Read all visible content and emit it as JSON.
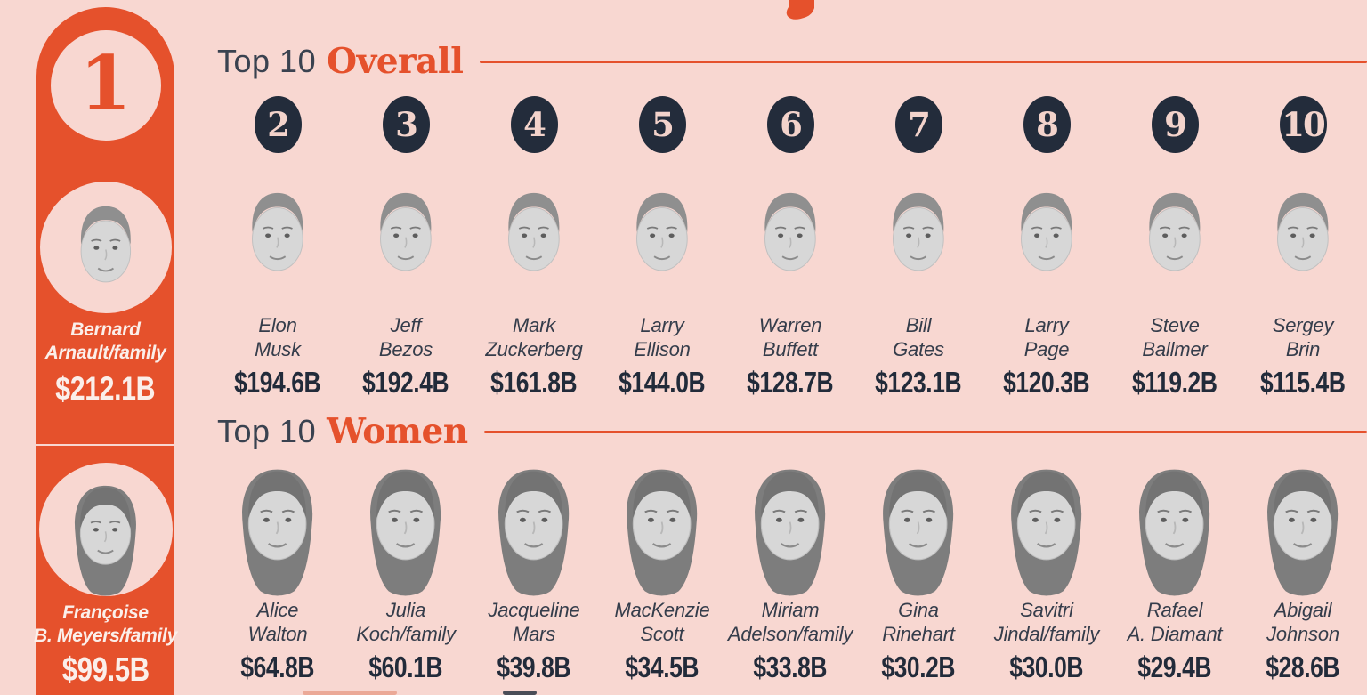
{
  "page": {
    "background_color": "#F8D7D1",
    "accent_orange": "#E5512C",
    "navy": "#232C3B",
    "badge_number_color": "#F3D3CB",
    "sidebar_text_color": "#FBEFEA",
    "value_unit": "USD billions"
  },
  "sidebar": {
    "rank": "1",
    "entries": [
      {
        "name": "Bernard Arnault/family",
        "line1": "Bernard",
        "line2": "Arnault/family",
        "value": "$212.1B",
        "photo": "male"
      },
      {
        "name": "Françoise B. Meyers/family",
        "line1": "Françoise",
        "line2": "B. Meyers/family",
        "value": "$99.5B",
        "photo": "female"
      }
    ]
  },
  "sections": [
    {
      "heading_prefix": "Top 10",
      "heading_highlight": "Overall",
      "show_ranks": true,
      "people": [
        {
          "rank": "2",
          "line1": "Elon",
          "line2": "Musk",
          "value": "$194.6B",
          "photo": "male"
        },
        {
          "rank": "3",
          "line1": "Jeff",
          "line2": "Bezos",
          "value": "$192.4B",
          "photo": "male"
        },
        {
          "rank": "4",
          "line1": "Mark",
          "line2": "Zuckerberg",
          "value": "$161.8B",
          "photo": "male"
        },
        {
          "rank": "5",
          "line1": "Larry",
          "line2": "Ellison",
          "value": "$144.0B",
          "photo": "male"
        },
        {
          "rank": "6",
          "line1": "Warren",
          "line2": "Buffett",
          "value": "$128.7B",
          "photo": "male"
        },
        {
          "rank": "7",
          "line1": "Bill",
          "line2": "Gates",
          "value": "$123.1B",
          "photo": "male"
        },
        {
          "rank": "8",
          "line1": "Larry",
          "line2": "Page",
          "value": "$120.3B",
          "photo": "male"
        },
        {
          "rank": "9",
          "line1": "Steve",
          "line2": "Ballmer",
          "value": "$119.2B",
          "photo": "male"
        },
        {
          "rank": "10",
          "line1": "Sergey",
          "line2": "Brin",
          "value": "$115.4B",
          "photo": "male"
        }
      ]
    },
    {
      "heading_prefix": "Top 10",
      "heading_highlight": "Women",
      "show_ranks": false,
      "people": [
        {
          "line1": "Alice",
          "line2": "Walton",
          "value": "$64.8B",
          "photo": "female"
        },
        {
          "line1": "Julia",
          "line2": "Koch/family",
          "value": "$60.1B",
          "photo": "female"
        },
        {
          "line1": "Jacqueline",
          "line2": "Mars",
          "value": "$39.8B",
          "photo": "female"
        },
        {
          "line1": "MacKenzie",
          "line2": "Scott",
          "value": "$34.5B",
          "photo": "female"
        },
        {
          "line1": "Miriam",
          "line2": "Adelson/family",
          "value": "$33.8B",
          "photo": "female"
        },
        {
          "line1": "Gina",
          "line2": "Rinehart",
          "value": "$30.2B",
          "photo": "female"
        },
        {
          "line1": "Savitri",
          "line2": "Jindal/family",
          "value": "$30.0B",
          "photo": "female"
        },
        {
          "line1": "Rafael",
          "line2": "A. Diamant",
          "value": "$29.4B",
          "photo": "female"
        },
        {
          "line1": "Abigail",
          "line2": "Johnson",
          "value": "$28.6B",
          "photo": "female"
        }
      ]
    }
  ],
  "chart_data": {
    "type": "table",
    "value_unit": "USD billions",
    "series": [
      {
        "name": "Top 10 Overall",
        "points": [
          {
            "rank": 1,
            "label": "Bernard Arnault/family",
            "value_billion_usd": 212.1
          },
          {
            "rank": 2,
            "label": "Elon Musk",
            "value_billion_usd": 194.6
          },
          {
            "rank": 3,
            "label": "Jeff Bezos",
            "value_billion_usd": 192.4
          },
          {
            "rank": 4,
            "label": "Mark Zuckerberg",
            "value_billion_usd": 161.8
          },
          {
            "rank": 5,
            "label": "Larry Ellison",
            "value_billion_usd": 144.0
          },
          {
            "rank": 6,
            "label": "Warren Buffett",
            "value_billion_usd": 128.7
          },
          {
            "rank": 7,
            "label": "Bill Gates",
            "value_billion_usd": 123.1
          },
          {
            "rank": 8,
            "label": "Larry Page",
            "value_billion_usd": 120.3
          },
          {
            "rank": 9,
            "label": "Steve Ballmer",
            "value_billion_usd": 119.2
          },
          {
            "rank": 10,
            "label": "Sergey Brin",
            "value_billion_usd": 115.4
          }
        ]
      },
      {
        "name": "Top 10 Women",
        "points": [
          {
            "rank": 1,
            "label": "Françoise B. Meyers/family",
            "value_billion_usd": 99.5
          },
          {
            "label": "Alice Walton",
            "value_billion_usd": 64.8
          },
          {
            "label": "Julia Koch/family",
            "value_billion_usd": 60.1
          },
          {
            "label": "Jacqueline Mars",
            "value_billion_usd": 39.8
          },
          {
            "label": "MacKenzie Scott",
            "value_billion_usd": 34.5
          },
          {
            "label": "Miriam Adelson/family",
            "value_billion_usd": 33.8
          },
          {
            "label": "Gina Rinehart",
            "value_billion_usd": 30.2
          },
          {
            "label": "Savitri Jindal/family",
            "value_billion_usd": 30.0
          },
          {
            "label": "Rafael A. Diamant",
            "value_billion_usd": 29.4
          },
          {
            "label": "Abigail Johnson",
            "value_billion_usd": 28.6
          }
        ]
      }
    ]
  }
}
